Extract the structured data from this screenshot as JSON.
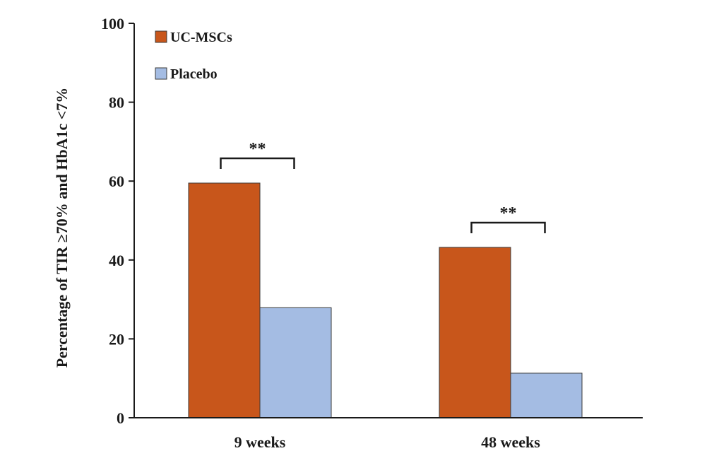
{
  "chart_data": {
    "type": "bar",
    "categories": [
      "9 weeks",
      "48 weeks"
    ],
    "series": [
      {
        "name": "UC-MSCs",
        "values": [
          59.5,
          43.2
        ],
        "color": "#c8561b"
      },
      {
        "name": "Placebo",
        "values": [
          27.9,
          11.3
        ],
        "color": "#a4bce3"
      }
    ],
    "ylabel": "Percentage of TIR ≥70% and HbA1c <7%",
    "xlabel": "",
    "ylim": [
      0,
      100
    ],
    "yticks": [
      0,
      20,
      40,
      60,
      80,
      100
    ],
    "legend_position": "top-left",
    "grid": false,
    "annotations": [
      {
        "category": "9 weeks",
        "text": "**"
      },
      {
        "category": "48 weeks",
        "text": "**"
      }
    ]
  }
}
